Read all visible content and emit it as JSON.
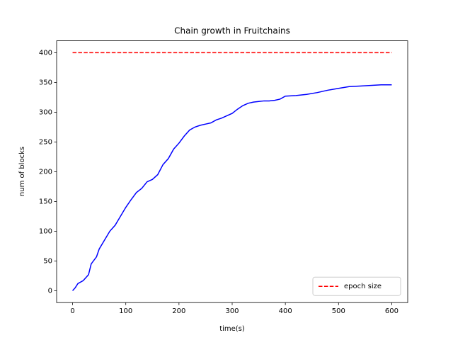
{
  "chart_data": {
    "type": "line",
    "title": "Chain growth in Fruitchains",
    "x_label": "time(s)",
    "y_label": "num of blocks",
    "xlim": [
      -30,
      630
    ],
    "ylim": [
      -20,
      420
    ],
    "xticks": [
      0,
      100,
      200,
      300,
      400,
      500,
      600
    ],
    "yticks": [
      0,
      50,
      100,
      150,
      200,
      250,
      300,
      350,
      400
    ],
    "grid": false,
    "legend": "lower right",
    "series": [
      {
        "color": "#0000ff",
        "dash": "solid",
        "x": [
          0,
          5,
          10,
          20,
          30,
          35,
          45,
          50,
          60,
          70,
          80,
          90,
          100,
          110,
          120,
          130,
          140,
          150,
          160,
          170,
          180,
          190,
          200,
          210,
          220,
          230,
          240,
          250,
          260,
          270,
          280,
          290,
          300,
          310,
          320,
          330,
          340,
          350,
          360,
          370,
          380,
          390,
          400,
          420,
          440,
          460,
          480,
          500,
          520,
          540,
          560,
          580,
          600
        ],
        "values": [
          0,
          5,
          12,
          17,
          27,
          45,
          57,
          70,
          85,
          100,
          110,
          125,
          140,
          153,
          165,
          172,
          183,
          187,
          195,
          212,
          222,
          238,
          248,
          260,
          270,
          275,
          278,
          280,
          282,
          287,
          290,
          294,
          298,
          305,
          311,
          315,
          317,
          318,
          319,
          319,
          320,
          322,
          327,
          328,
          330,
          333,
          337,
          340,
          343,
          344,
          345,
          346,
          346
        ]
      },
      {
        "name": "epoch size",
        "color": "#ff0000",
        "dash": "dashed",
        "x": [
          0,
          600
        ],
        "values": [
          400,
          400
        ]
      }
    ]
  }
}
